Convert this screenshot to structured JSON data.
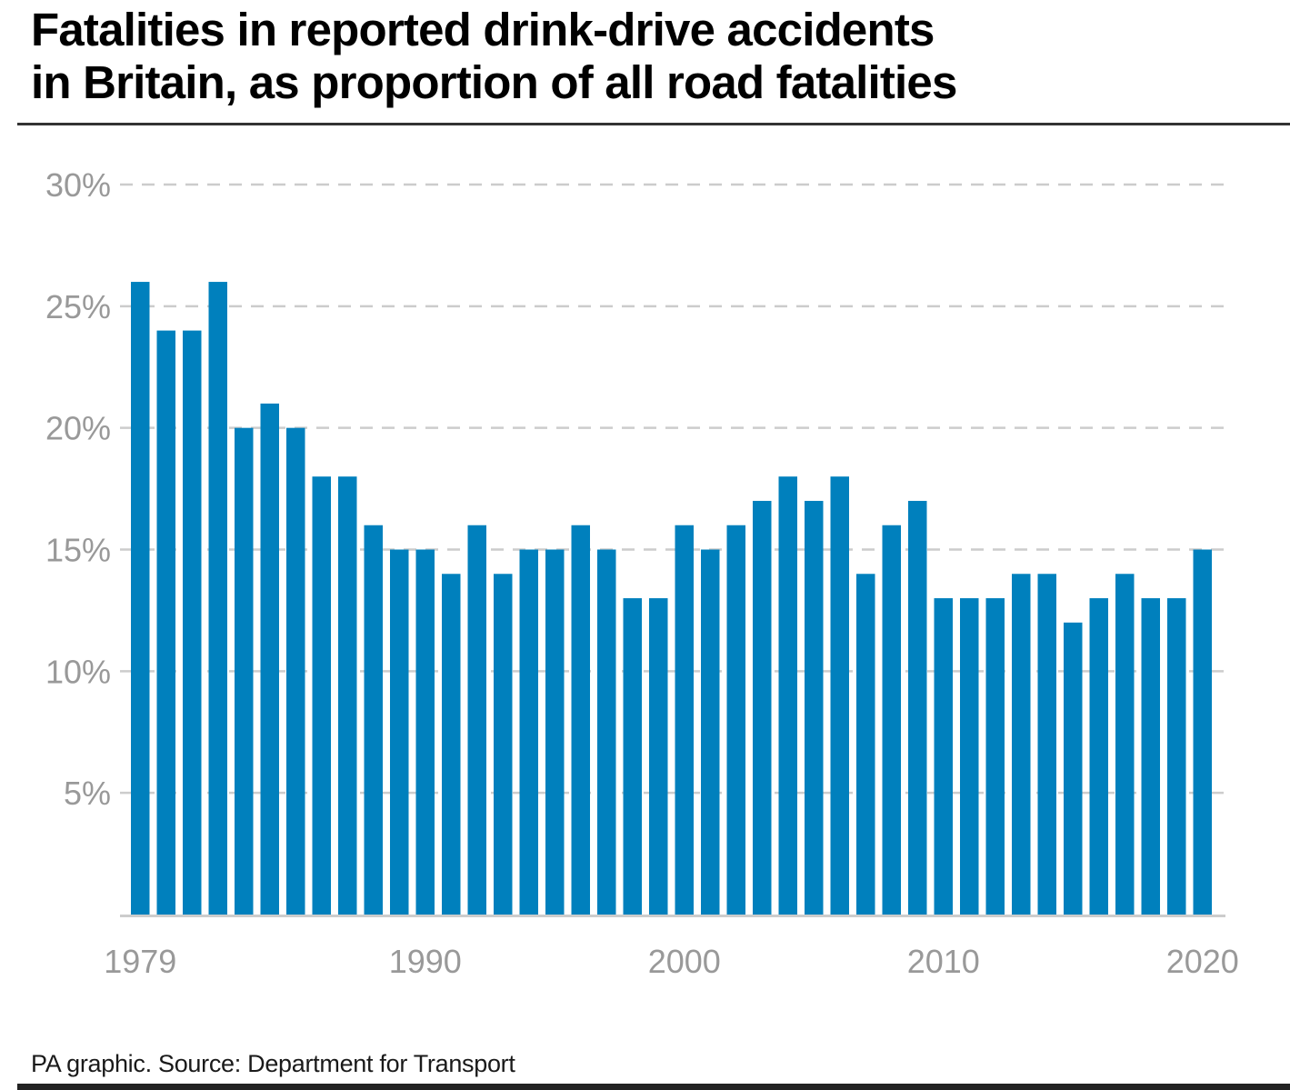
{
  "header": {
    "title_line1": "Fatalities in reported drink-drive accidents",
    "title_line2": "in Britain, as proportion of all road fatalities"
  },
  "footer": {
    "source": "PA graphic. Source: Department for Transport"
  },
  "colors": {
    "bar": "#0080bd",
    "grid": "#cccccc",
    "axis_text": "#999999"
  },
  "chart_data": {
    "type": "bar",
    "title": "Fatalities in reported drink-drive accidents in Britain, as proportion of all road fatalities",
    "xlabel": "",
    "ylabel": "",
    "ylim": [
      0,
      30
    ],
    "y_unit": "%",
    "grid": true,
    "legend": "none",
    "y_ticks": [
      5,
      10,
      15,
      20,
      25,
      30
    ],
    "y_tick_labels": [
      "5%",
      "10%",
      "15%",
      "20%",
      "25%",
      "30%"
    ],
    "x_tick_labels": [
      "1979",
      "1990",
      "2000",
      "2010",
      "2020"
    ],
    "categories": [
      "1979",
      "1980",
      "1981",
      "1982",
      "1983",
      "1984",
      "1985",
      "1986",
      "1987",
      "1988",
      "1989",
      "1990",
      "1991",
      "1992",
      "1993",
      "1994",
      "1995",
      "1996",
      "1997",
      "1998",
      "1999",
      "2000",
      "2001",
      "2002",
      "2003",
      "2004",
      "2005",
      "2006",
      "2007",
      "2008",
      "2009",
      "2010",
      "2011",
      "2012",
      "2013",
      "2014",
      "2015",
      "2016",
      "2017",
      "2018",
      "2019",
      "2020"
    ],
    "values": [
      26,
      24,
      24,
      26,
      20,
      21,
      20,
      18,
      18,
      16,
      15,
      15,
      14,
      16,
      14,
      15,
      15,
      16,
      15,
      13,
      13,
      16,
      15,
      16,
      17,
      18,
      17,
      18,
      14,
      16,
      17,
      13,
      13,
      13,
      14,
      14,
      12,
      13,
      14,
      13,
      13,
      15
    ]
  }
}
